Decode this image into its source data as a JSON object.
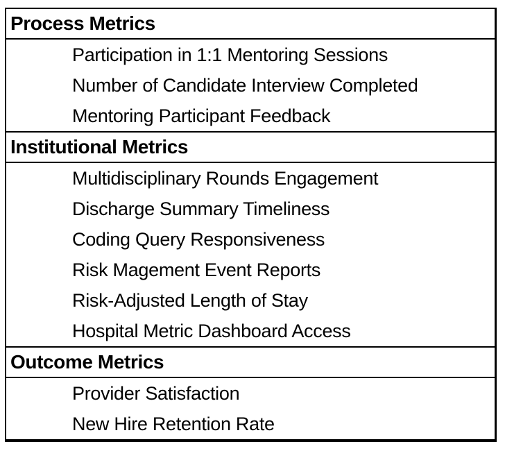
{
  "table": {
    "sections": [
      {
        "header": "Process Metrics",
        "items": [
          "Participation in 1:1 Mentoring Sessions",
          "Number of Candidate Interview Completed",
          "Mentoring Participant Feedback"
        ]
      },
      {
        "header": "Institutional Metrics",
        "items": [
          "Multidisciplinary Rounds Engagement",
          "Discharge Summary Timeliness",
          "Coding Query Responsiveness",
          "Risk Magement Event Reports",
          "Risk-Adjusted Length of Stay",
          "Hospital Metric Dashboard Access"
        ]
      },
      {
        "header": "Outcome Metrics",
        "items": [
          "Provider Satisfaction",
          "New Hire Retention Rate"
        ]
      }
    ]
  },
  "colors": {
    "border": "#000000",
    "text": "#000000",
    "background": "#ffffff"
  }
}
